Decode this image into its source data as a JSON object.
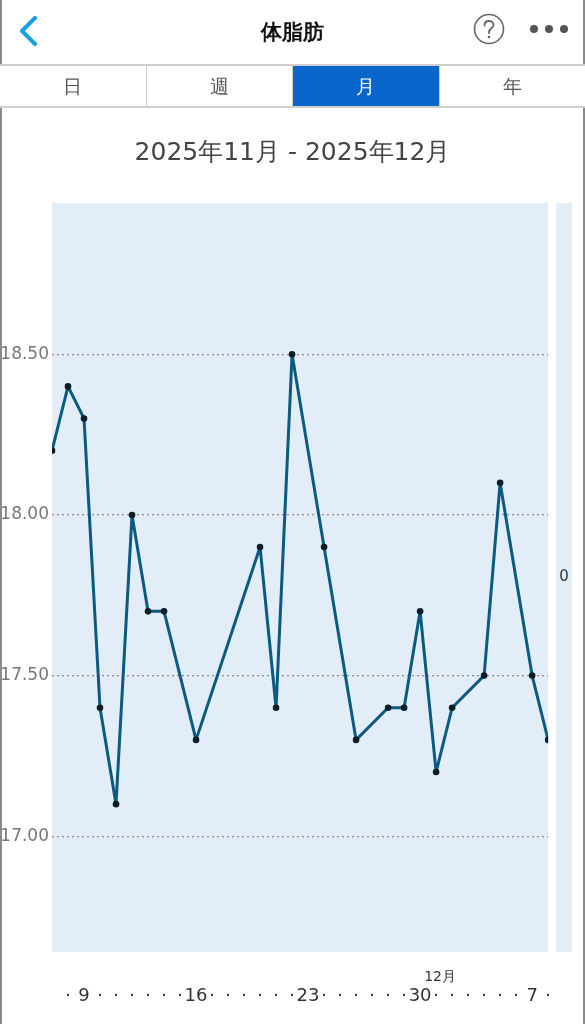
{
  "chart_data": {
    "type": "line",
    "title": "体脂肪",
    "subtitle": "2025年11月 - 2025年12月",
    "annotations": [
      "日",
      "週",
      "月",
      "年",
      "12月",
      "0"
    ],
    "x": [
      "2025-11-07",
      "2025-11-08",
      "2025-11-09",
      "2025-11-10",
      "2025-11-11",
      "2025-11-12",
      "2025-11-13",
      "2025-11-14",
      "2025-11-16",
      "2025-11-20",
      "2025-11-21",
      "2025-11-22",
      "2025-11-24",
      "2025-11-26",
      "2025-11-28",
      "2025-11-29",
      "2025-11-30",
      "2025-12-01",
      "2025-12-02",
      "2025-12-04",
      "2025-12-05",
      "2025-12-07",
      "2025-12-08"
    ],
    "values": [
      18.2,
      18.4,
      18.3,
      17.4,
      17.1,
      18.0,
      17.7,
      17.7,
      17.3,
      17.9,
      17.4,
      18.5,
      17.9,
      17.3,
      17.4,
      17.4,
      17.7,
      17.2,
      17.4,
      17.5,
      18.1,
      17.5,
      17.3
    ],
    "color": "#0b5a82",
    "xlim": [
      "2025-11-07",
      "2025-12-08"
    ],
    "xticks": [
      {
        "value": "2025-11-08",
        "label": "·"
      },
      {
        "value": "2025-11-09",
        "label": "9"
      },
      {
        "value": "2025-11-10",
        "label": "·"
      },
      {
        "value": "2025-11-11",
        "label": "·"
      },
      {
        "value": "2025-11-12",
        "label": "·"
      },
      {
        "value": "2025-11-13",
        "label": "·"
      },
      {
        "value": "2025-11-14",
        "label": "·"
      },
      {
        "value": "2025-11-15",
        "label": "·"
      },
      {
        "value": "2025-11-16",
        "label": "16"
      },
      {
        "value": "2025-11-17",
        "label": "·"
      },
      {
        "value": "2025-11-18",
        "label": "·"
      },
      {
        "value": "2025-11-19",
        "label": "·"
      },
      {
        "value": "2025-11-20",
        "label": "·"
      },
      {
        "value": "2025-11-21",
        "label": "·"
      },
      {
        "value": "2025-11-22",
        "label": "·"
      },
      {
        "value": "2025-11-23",
        "label": "23"
      },
      {
        "value": "2025-11-24",
        "label": "·"
      },
      {
        "value": "2025-11-25",
        "label": "·"
      },
      {
        "value": "2025-11-26",
        "label": "·"
      },
      {
        "value": "2025-11-27",
        "label": "·"
      },
      {
        "value": "2025-11-28",
        "label": "·"
      },
      {
        "value": "2025-11-29",
        "label": "·"
      },
      {
        "value": "2025-11-30",
        "label": "30"
      },
      {
        "value": "2025-12-01",
        "label": "·"
      },
      {
        "value": "2025-12-02",
        "label": "·"
      },
      {
        "value": "2025-12-03",
        "label": "·"
      },
      {
        "value": "2025-12-04",
        "label": "·"
      },
      {
        "value": "2025-12-05",
        "label": "·"
      },
      {
        "value": "2025-12-06",
        "label": "·"
      },
      {
        "value": "2025-12-07",
        "label": "7"
      },
      {
        "value": "2025-12-08",
        "label": "·"
      }
    ],
    "ylim": [
      16.64,
      18.97
    ],
    "yticks": [
      {
        "value": 17,
        "label": "17.00"
      },
      {
        "value": 17.5,
        "label": "17.50"
      },
      {
        "value": 18,
        "label": "18.00"
      },
      {
        "value": 18.5,
        "label": "18.50"
      }
    ],
    "grid": "y",
    "marker": "circle"
  }
}
